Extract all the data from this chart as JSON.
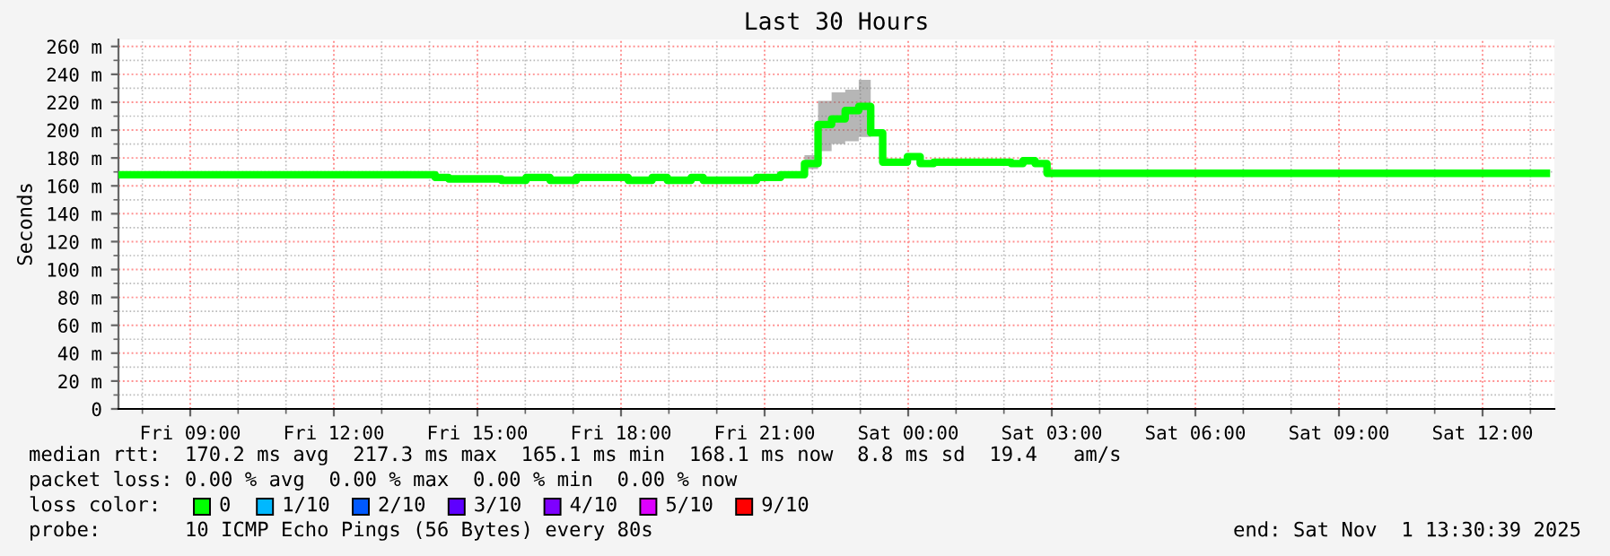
{
  "chart_data": {
    "type": "step",
    "title": "Last 30 Hours",
    "ylabel": "Seconds",
    "xlim": [
      "2025-10-31T07:30",
      "2025-11-01T13:30"
    ],
    "xticks": [
      {
        "value": "2025-10-31T09:00",
        "label": "Fri 09:00"
      },
      {
        "value": "2025-10-31T12:00",
        "label": "Fri 12:00"
      },
      {
        "value": "2025-10-31T15:00",
        "label": "Fri 15:00"
      },
      {
        "value": "2025-10-31T18:00",
        "label": "Fri 18:00"
      },
      {
        "value": "2025-10-31T21:00",
        "label": "Fri 21:00"
      },
      {
        "value": "2025-11-01T00:00",
        "label": "Sat 00:00"
      },
      {
        "value": "2025-11-01T03:00",
        "label": "Sat 03:00"
      },
      {
        "value": "2025-11-01T06:00",
        "label": "Sat 06:00"
      },
      {
        "value": "2025-11-01T09:00",
        "label": "Sat 09:00"
      },
      {
        "value": "2025-11-01T12:00",
        "label": "Sat 12:00"
      }
    ],
    "ylim": [
      0,
      265
    ],
    "yticks": [
      {
        "value": 0,
        "label": "0"
      },
      {
        "value": 20,
        "label": "20 m"
      },
      {
        "value": 40,
        "label": "40 m"
      },
      {
        "value": 60,
        "label": "60 m"
      },
      {
        "value": 80,
        "label": "80 m"
      },
      {
        "value": 100,
        "label": "100 m"
      },
      {
        "value": 120,
        "label": "120 m"
      },
      {
        "value": 140,
        "label": "140 m"
      },
      {
        "value": 160,
        "label": "160 m"
      },
      {
        "value": 180,
        "label": "180 m"
      },
      {
        "value": 200,
        "label": "200 m"
      },
      {
        "value": 220,
        "label": "220 m"
      },
      {
        "value": 240,
        "label": "240 m"
      },
      {
        "value": 260,
        "label": "260 m"
      }
    ],
    "grid": true,
    "series": [
      {
        "color": "#00ff00",
        "x": [
          "2025-10-31T07:30",
          "2025-10-31T14:07",
          "2025-10-31T14:24",
          "2025-10-31T15:30",
          "2025-10-31T16:01",
          "2025-10-31T16:31",
          "2025-10-31T17:04",
          "2025-10-31T18:09",
          "2025-10-31T18:39",
          "2025-10-31T18:58",
          "2025-10-31T19:28",
          "2025-10-31T19:43",
          "2025-10-31T20:50",
          "2025-10-31T21:20",
          "2025-10-31T21:50",
          "2025-10-31T22:07",
          "2025-10-31T22:24",
          "2025-10-31T22:41",
          "2025-10-31T22:58",
          "2025-10-31T23:13",
          "2025-10-31T23:28",
          "2025-10-31T23:59",
          "2025-11-01T00:15",
          "2025-11-01T00:32",
          "2025-11-01T02:09",
          "2025-11-01T02:24",
          "2025-11-01T02:39",
          "2025-11-01T02:54",
          "2025-11-01T13:20"
        ],
        "values": [
          168,
          166,
          165,
          164,
          166,
          164,
          166,
          164,
          166,
          164,
          166,
          164,
          166,
          168,
          176,
          204,
          208,
          214,
          217,
          198,
          177,
          181,
          176,
          177,
          176,
          178,
          176,
          169,
          169
        ],
        "lower": [
          null,
          null,
          null,
          null,
          null,
          null,
          null,
          null,
          null,
          null,
          null,
          null,
          null,
          null,
          172,
          185,
          190,
          192,
          195,
          180,
          null,
          null,
          null,
          null,
          null,
          null,
          null,
          null,
          null
        ],
        "upper": [
          null,
          null,
          null,
          null,
          null,
          null,
          null,
          null,
          null,
          null,
          null,
          null,
          null,
          null,
          182,
          221,
          227,
          229,
          236,
          205,
          null,
          null,
          null,
          null,
          null,
          null,
          null,
          null,
          null
        ]
      }
    ],
    "annotations": [
      "median rtt:  170.2 ms avg  217.3 ms max  165.1 ms min  168.1 ms now  8.8 ms sd  19.4   am/s",
      "packet loss: 0.00 % avg  0.00 % max  0.00 % min  0.00 % now",
      "loss color:",
      "0",
      "1/10",
      "2/10",
      "3/10",
      "4/10",
      "5/10",
      "9/10",
      "probe:       10 ICMP Echo Pings (56 Bytes) every 80s",
      "end: Sat Nov  1 13:30:39 2025"
    ]
  }
}
